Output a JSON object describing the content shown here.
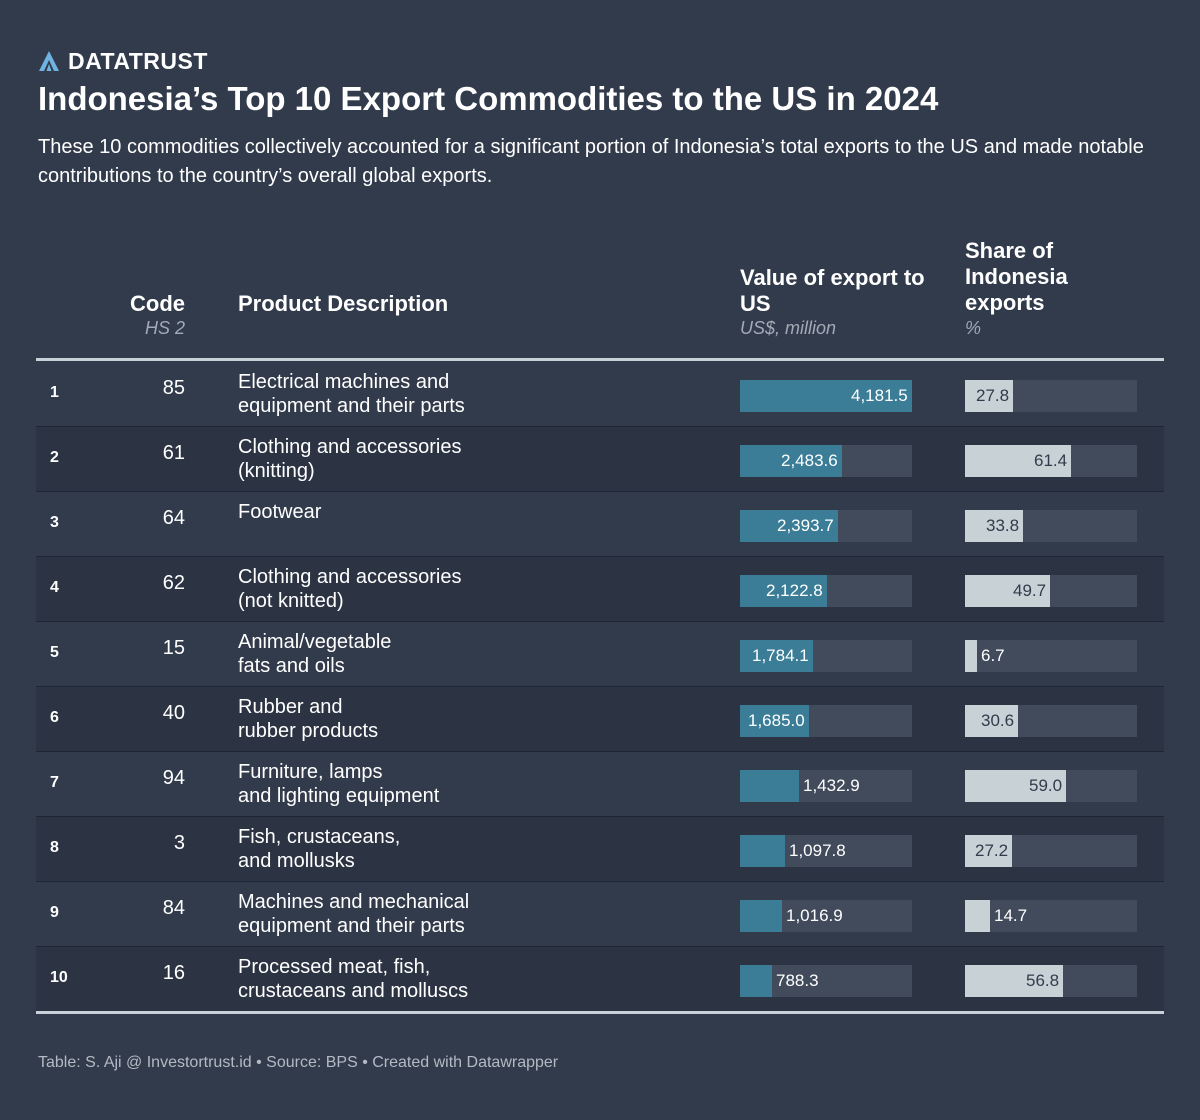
{
  "brand": {
    "name": "DATATRUST",
    "icon": "datatrust-logo-icon"
  },
  "title": "Indonesia’s Top 10 Export Commodities to the US in 2024",
  "subtitle": "These 10 commodities collectively accounted for a significant portion of Indonesia’s total exports to the US and made notable contributions to the country’s overall global exports.",
  "columns": {
    "code": {
      "label": "Code",
      "sub": "HS 2"
    },
    "product": {
      "label": "Product Description"
    },
    "value": {
      "label": "Value of export to US",
      "sub": "US$, million"
    },
    "share": {
      "label": "Share of Indonesia exports",
      "sub": "%"
    }
  },
  "footer": "Table: S. Aji @ Investortrust.id • Source: BPS • Created with Datawrapper",
  "colors": {
    "background": "#323b4b",
    "value_bar": "#3b7d97",
    "share_bar": "#c7d1d6",
    "bar_track": "#414b5b"
  },
  "chart_data": {
    "type": "table",
    "value_max": 4181.5,
    "share_max": 100,
    "rows": [
      {
        "rank": "1",
        "code": "85",
        "desc1": "Electrical machines and",
        "desc2": "equipment and their parts",
        "value": 4181.5,
        "value_label": "4,181.5",
        "share": 27.8,
        "share_label": "27.8"
      },
      {
        "rank": "2",
        "code": "61",
        "desc1": "Clothing and accessories",
        "desc2": "(knitting)",
        "value": 2483.6,
        "value_label": "2,483.6",
        "share": 61.4,
        "share_label": "61.4"
      },
      {
        "rank": "3",
        "code": "64",
        "desc1": "Footwear",
        "desc2": "",
        "value": 2393.7,
        "value_label": "2,393.7",
        "share": 33.8,
        "share_label": "33.8"
      },
      {
        "rank": "4",
        "code": "62",
        "desc1": "Clothing and accessories",
        "desc2": "(not knitted)",
        "value": 2122.8,
        "value_label": "2,122.8",
        "share": 49.7,
        "share_label": "49.7"
      },
      {
        "rank": "5",
        "code": "15",
        "desc1": "Animal/vegetable",
        "desc2": "fats and oils",
        "value": 1784.1,
        "value_label": "1,784.1",
        "share": 6.7,
        "share_label": "6.7"
      },
      {
        "rank": "6",
        "code": "40",
        "desc1": "Rubber and",
        "desc2": "rubber products",
        "value": 1685.0,
        "value_label": "1,685.0",
        "share": 30.6,
        "share_label": "30.6"
      },
      {
        "rank": "7",
        "code": "94",
        "desc1": "Furniture, lamps",
        "desc2": "and lighting equipment",
        "value": 1432.9,
        "value_label": "1,432.9",
        "share": 59.0,
        "share_label": "59.0"
      },
      {
        "rank": "8",
        "code": "3",
        "desc1": "Fish, crustaceans,",
        "desc2": "and mollusks",
        "value": 1097.8,
        "value_label": "1,097.8",
        "share": 27.2,
        "share_label": "27.2"
      },
      {
        "rank": "9",
        "code": "84",
        "desc1": "Machines and mechanical",
        "desc2": "equipment and their parts",
        "value": 1016.9,
        "value_label": "1,016.9",
        "share": 14.7,
        "share_label": "14.7"
      },
      {
        "rank": "10",
        "code": "16",
        "desc1": "Processed meat, fish,",
        "desc2": "crustaceans and molluscs",
        "value": 788.3,
        "value_label": "788.3",
        "share": 56.8,
        "share_label": "56.8"
      }
    ]
  }
}
